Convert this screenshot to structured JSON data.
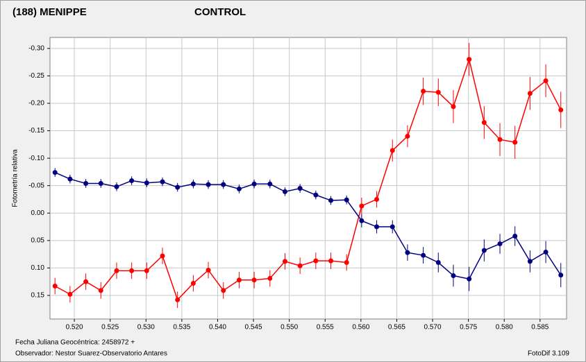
{
  "chart_data": {
    "type": "line",
    "ylabel": "Fotometría relativa",
    "footer": {
      "date": "Fecha Juliana Geocéntrica: 2458972 +",
      "observer": "Observador: Nestor Suarez-Observatorio Antares",
      "software": "FotoDif 3.109"
    },
    "y_inverted": true,
    "grid": true,
    "xlim": [
      0.5166,
      0.5887
    ],
    "ylim": [
      -0.32,
      0.193
    ],
    "xticks": [
      {
        "value": 0.52,
        "label": "0.520"
      },
      {
        "value": 0.525,
        "label": "0.525"
      },
      {
        "value": 0.53,
        "label": "0.530"
      },
      {
        "value": 0.535,
        "label": "0.535"
      },
      {
        "value": 0.54,
        "label": "0.540"
      },
      {
        "value": 0.545,
        "label": "0.545"
      },
      {
        "value": 0.55,
        "label": "0.550"
      },
      {
        "value": 0.555,
        "label": "0.555"
      },
      {
        "value": 0.56,
        "label": "0.560"
      },
      {
        "value": 0.565,
        "label": "0.565"
      },
      {
        "value": 0.57,
        "label": "0.570"
      },
      {
        "value": 0.575,
        "label": "0.575"
      },
      {
        "value": 0.58,
        "label": "0.580"
      },
      {
        "value": 0.585,
        "label": "0.585"
      }
    ],
    "yticks": [
      {
        "value": -0.3,
        "label": "-0.30"
      },
      {
        "value": -0.25,
        "label": "-0.25"
      },
      {
        "value": -0.2,
        "label": "-0.20"
      },
      {
        "value": -0.15,
        "label": "-0.15"
      },
      {
        "value": -0.1,
        "label": "-0.10"
      },
      {
        "value": -0.05,
        "label": "-0.05"
      },
      {
        "value": 0,
        "label": "0.00"
      },
      {
        "value": 0.05,
        "label": "0.05"
      },
      {
        "value": 0.1,
        "label": "0.10"
      },
      {
        "value": 0.15,
        "label": "0.15"
      }
    ],
    "x": [
      0.5173,
      0.5194,
      0.5216,
      0.5237,
      0.5259,
      0.528,
      0.5301,
      0.5323,
      0.5344,
      0.5366,
      0.5387,
      0.5408,
      0.543,
      0.5451,
      0.5473,
      0.5494,
      0.5515,
      0.5537,
      0.5558,
      0.558,
      0.5601,
      0.5622,
      0.5644,
      0.5665,
      0.5687,
      0.5708,
      0.5729,
      0.5751,
      0.5772,
      0.5794,
      0.5815,
      0.5836,
      0.5858,
      0.5879
    ],
    "series": [
      {
        "name": "(188) MENIPPE",
        "color": "#ff0000",
        "values": [
          0.133,
          0.148,
          0.125,
          0.141,
          0.105,
          0.105,
          0.105,
          0.078,
          0.158,
          0.128,
          0.104,
          0.141,
          0.122,
          0.122,
          0.119,
          0.088,
          0.096,
          0.087,
          0.087,
          0.09,
          -0.013,
          -0.025,
          -0.114,
          -0.14,
          -0.222,
          -0.22,
          -0.194,
          -0.28,
          -0.165,
          -0.134,
          -0.129,
          -0.218,
          -0.241,
          -0.188
        ],
        "errors": [
          0.015,
          0.015,
          0.015,
          0.015,
          0.015,
          0.015,
          0.015,
          0.015,
          0.015,
          0.015,
          0.015,
          0.015,
          0.015,
          0.015,
          0.015,
          0.015,
          0.015,
          0.015,
          0.015,
          0.015,
          0.015,
          0.015,
          0.02,
          0.02,
          0.025,
          0.025,
          0.03,
          0.03,
          0.03,
          0.03,
          0.03,
          0.03,
          0.03,
          0.033
        ]
      },
      {
        "name": "CONTROL",
        "color": "#000080",
        "values": [
          -0.074,
          -0.062,
          -0.054,
          -0.054,
          -0.048,
          -0.059,
          -0.055,
          -0.057,
          -0.047,
          -0.053,
          -0.052,
          -0.052,
          -0.044,
          -0.053,
          -0.053,
          -0.039,
          -0.045,
          -0.033,
          -0.023,
          -0.024,
          0.014,
          0.025,
          0.025,
          0.072,
          0.077,
          0.09,
          0.114,
          0.12,
          0.068,
          0.056,
          0.042,
          0.088,
          0.071,
          0.113
        ],
        "errors": [
          0.008,
          0.008,
          0.008,
          0.008,
          0.008,
          0.008,
          0.008,
          0.008,
          0.008,
          0.008,
          0.008,
          0.008,
          0.008,
          0.008,
          0.008,
          0.008,
          0.008,
          0.008,
          0.008,
          0.008,
          0.012,
          0.012,
          0.012,
          0.015,
          0.015,
          0.018,
          0.02,
          0.022,
          0.02,
          0.018,
          0.018,
          0.02,
          0.02,
          0.022
        ]
      }
    ]
  }
}
